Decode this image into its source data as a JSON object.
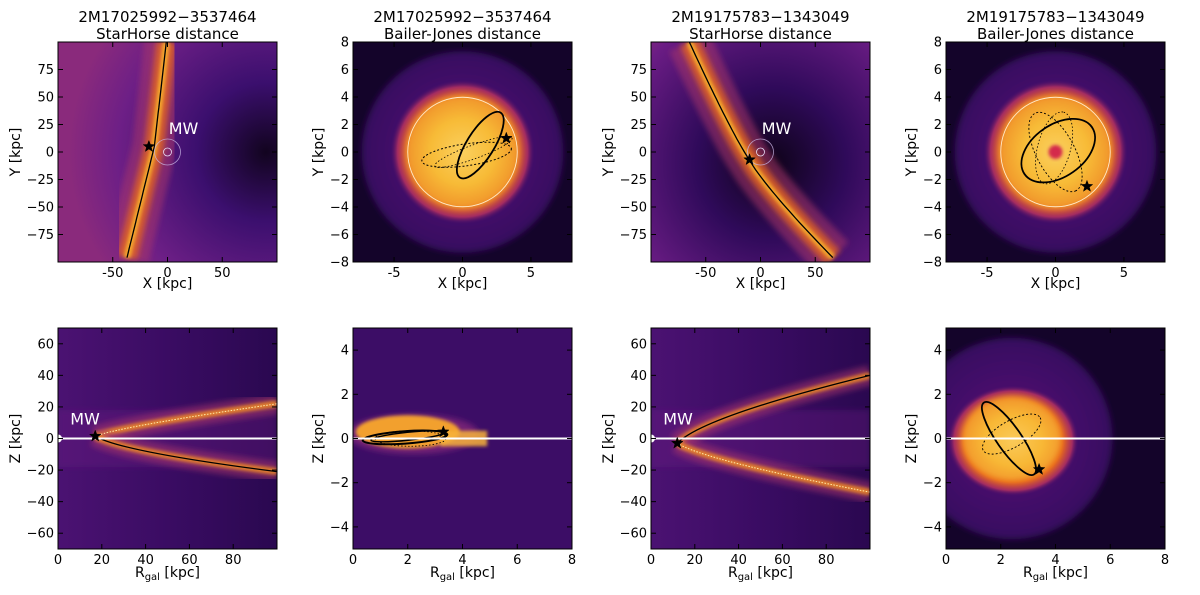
{
  "chart_data": [
    {
      "type": "heatmap",
      "title_line1": "2M17025992−3537464",
      "title_line2": "StarHorse distance",
      "xlabel": "X [kpc]",
      "ylabel": "Y [kpc]",
      "xlim": [
        -100,
        100
      ],
      "ylim": [
        -100,
        100
      ],
      "xticks": [
        -50,
        0,
        50
      ],
      "yticks": [
        -75,
        -50,
        -25,
        0,
        25,
        50,
        75
      ],
      "annotation": "MW",
      "star": [
        -17,
        5
      ],
      "mw_marker": [
        0,
        0
      ]
    },
    {
      "type": "heatmap",
      "title_line1": "2M17025992−3537464",
      "title_line2": "Bailer-Jones distance",
      "xlabel": "X [kpc]",
      "ylabel": "Y [kpc]",
      "xlim": [
        -8,
        8
      ],
      "ylim": [
        -8,
        8
      ],
      "xticks": [
        -5,
        0,
        5
      ],
      "yticks": [
        -8,
        -6,
        -4,
        -2,
        0,
        2,
        4,
        6,
        8
      ],
      "star": [
        3.2,
        1.0
      ]
    },
    {
      "type": "heatmap",
      "title_line1": "2M19175783−1343049",
      "title_line2": "StarHorse distance",
      "xlabel": "X [kpc]",
      "ylabel": "Y [kpc]",
      "xlim": [
        -100,
        100
      ],
      "ylim": [
        -100,
        100
      ],
      "xticks": [
        -50,
        0,
        50
      ],
      "yticks": [
        -75,
        -50,
        -25,
        0,
        25,
        50,
        75
      ],
      "annotation": "MW",
      "star": [
        -10,
        -7
      ],
      "mw_marker": [
        0,
        0
      ]
    },
    {
      "type": "heatmap",
      "title_line1": "2M19175783−1343049",
      "title_line2": "Bailer-Jones distance",
      "xlabel": "X [kpc]",
      "ylabel": "Y [kpc]",
      "xlim": [
        -8,
        8
      ],
      "ylim": [
        -8,
        8
      ],
      "xticks": [
        -5,
        0,
        5
      ],
      "yticks": [
        -8,
        -6,
        -4,
        -2,
        0,
        2,
        4,
        6,
        8
      ],
      "star": [
        2.3,
        -2.5
      ]
    },
    {
      "type": "heatmap",
      "xlabel_main": "R",
      "xlabel_sub": "gal",
      "xlabel_unit": " [kpc]",
      "ylabel": "Z [kpc]",
      "xlim": [
        0,
        100
      ],
      "ylim": [
        -70,
        70
      ],
      "xticks": [
        0,
        20,
        40,
        60,
        80
      ],
      "yticks": [
        -60,
        -40,
        -20,
        0,
        20,
        40,
        60
      ],
      "annotation": "MW",
      "star": [
        17,
        1.5
      ]
    },
    {
      "type": "heatmap",
      "xlabel_main": "R",
      "xlabel_sub": "gal",
      "xlabel_unit": " [kpc]",
      "ylabel": "Z [kpc]",
      "xlim": [
        0,
        8
      ],
      "ylim": [
        -5,
        5
      ],
      "xticks": [
        0,
        2,
        4,
        6,
        8
      ],
      "yticks": [
        -4,
        -2,
        0,
        2,
        4
      ],
      "star": [
        3.3,
        0.3
      ]
    },
    {
      "type": "heatmap",
      "xlabel_main": "R",
      "xlabel_sub": "gal",
      "xlabel_unit": " [kpc]",
      "ylabel": "Z [kpc]",
      "xlim": [
        0,
        100
      ],
      "ylim": [
        -70,
        70
      ],
      "xticks": [
        0,
        20,
        40,
        60,
        80
      ],
      "yticks": [
        -60,
        -40,
        -20,
        0,
        20,
        40,
        60
      ],
      "annotation": "MW",
      "star": [
        12,
        -3
      ]
    },
    {
      "type": "heatmap",
      "xlabel_main": "R",
      "xlabel_sub": "gal",
      "xlabel_unit": " [kpc]",
      "ylabel": "Z [kpc]",
      "xlim": [
        0,
        8
      ],
      "ylim": [
        -5,
        5
      ],
      "xticks": [
        0,
        2,
        4,
        6,
        8
      ],
      "yticks": [
        -4,
        -2,
        0,
        2,
        4
      ],
      "star": [
        3.4,
        -1.4
      ]
    }
  ],
  "colors": {
    "background_dark": "#0d0320",
    "colormap": "inferno",
    "orbit_line": "#000000",
    "annotation_text": "#ffffff"
  }
}
